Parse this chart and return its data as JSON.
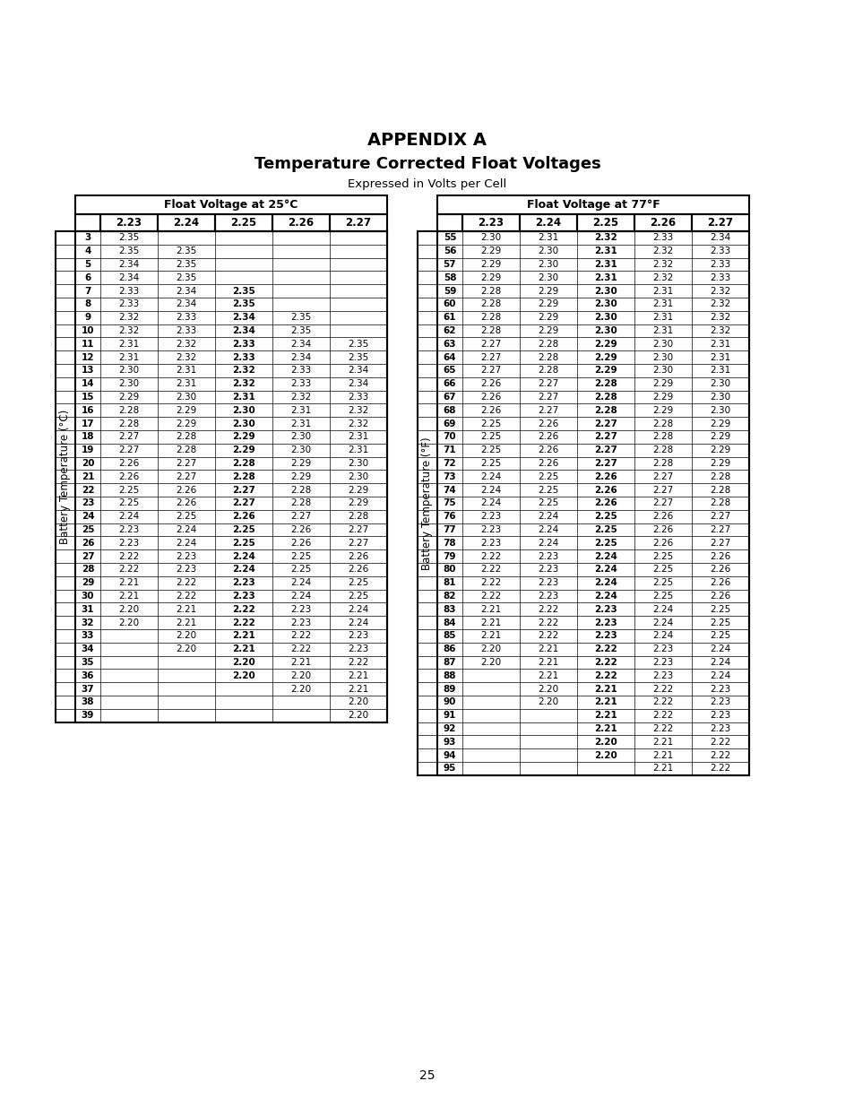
{
  "title1": "APPENDIX A",
  "title2": "Temperature Corrected Float Voltages",
  "title3": "Expressed in Volts per Cell",
  "table_left_header": "Float Voltage at 25°C",
  "table_right_header": "Float Voltage at 77°F",
  "col_headers": [
    "2.23",
    "2.24",
    "2.25",
    "2.26",
    "2.27"
  ],
  "ylabel_left": "Battery Temperature (°C)",
  "ylabel_right": "Battery Temperature (°F)",
  "page_number": "25",
  "left_table": {
    "rows": [
      [
        3,
        "2.35",
        "",
        "",
        "",
        ""
      ],
      [
        4,
        "2.35",
        "2.35",
        "",
        "",
        ""
      ],
      [
        5,
        "2.34",
        "2.35",
        "",
        "",
        ""
      ],
      [
        6,
        "2.34",
        "2.35",
        "",
        "",
        ""
      ],
      [
        7,
        "2.33",
        "2.34",
        "2.35",
        "",
        ""
      ],
      [
        8,
        "2.33",
        "2.34",
        "2.35",
        "",
        ""
      ],
      [
        9,
        "2.32",
        "2.33",
        "2.34",
        "2.35",
        ""
      ],
      [
        10,
        "2.32",
        "2.33",
        "2.34",
        "2.35",
        ""
      ],
      [
        11,
        "2.31",
        "2.32",
        "2.33",
        "2.34",
        "2.35"
      ],
      [
        12,
        "2.31",
        "2.32",
        "2.33",
        "2.34",
        "2.35"
      ],
      [
        13,
        "2.30",
        "2.31",
        "2.32",
        "2.33",
        "2.34"
      ],
      [
        14,
        "2.30",
        "2.31",
        "2.32",
        "2.33",
        "2.34"
      ],
      [
        15,
        "2.29",
        "2.30",
        "2.31",
        "2.32",
        "2.33"
      ],
      [
        16,
        "2.28",
        "2.29",
        "2.30",
        "2.31",
        "2.32"
      ],
      [
        17,
        "2.28",
        "2.29",
        "2.30",
        "2.31",
        "2.32"
      ],
      [
        18,
        "2.27",
        "2.28",
        "2.29",
        "2.30",
        "2.31"
      ],
      [
        19,
        "2.27",
        "2.28",
        "2.29",
        "2.30",
        "2.31"
      ],
      [
        20,
        "2.26",
        "2.27",
        "2.28",
        "2.29",
        "2.30"
      ],
      [
        21,
        "2.26",
        "2.27",
        "2.28",
        "2.29",
        "2.30"
      ],
      [
        22,
        "2.25",
        "2.26",
        "2.27",
        "2.28",
        "2.29"
      ],
      [
        23,
        "2.25",
        "2.26",
        "2.27",
        "2.28",
        "2.29"
      ],
      [
        24,
        "2.24",
        "2.25",
        "2.26",
        "2.27",
        "2.28"
      ],
      [
        25,
        "2.23",
        "2.24",
        "2.25",
        "2.26",
        "2.27"
      ],
      [
        26,
        "2.23",
        "2.24",
        "2.25",
        "2.26",
        "2.27"
      ],
      [
        27,
        "2.22",
        "2.23",
        "2.24",
        "2.25",
        "2.26"
      ],
      [
        28,
        "2.22",
        "2.23",
        "2.24",
        "2.25",
        "2.26"
      ],
      [
        29,
        "2.21",
        "2.22",
        "2.23",
        "2.24",
        "2.25"
      ],
      [
        30,
        "2.21",
        "2.22",
        "2.23",
        "2.24",
        "2.25"
      ],
      [
        31,
        "2.20",
        "2.21",
        "2.22",
        "2.23",
        "2.24"
      ],
      [
        32,
        "2.20",
        "2.21",
        "2.22",
        "2.23",
        "2.24"
      ],
      [
        33,
        "",
        "2.20",
        "2.21",
        "2.22",
        "2.23"
      ],
      [
        34,
        "",
        "2.20",
        "2.21",
        "2.22",
        "2.23"
      ],
      [
        35,
        "",
        "",
        "2.20",
        "2.21",
        "2.22"
      ],
      [
        36,
        "",
        "",
        "2.20",
        "2.20",
        "2.21"
      ],
      [
        37,
        "",
        "",
        "",
        "2.20",
        "2.21"
      ],
      [
        38,
        "",
        "",
        "",
        "",
        "2.20"
      ],
      [
        39,
        "",
        "",
        "",
        "",
        "2.20"
      ]
    ]
  },
  "right_table": {
    "rows": [
      [
        55,
        "2.30",
        "2.31",
        "2.32",
        "2.33",
        "2.34"
      ],
      [
        56,
        "2.29",
        "2.30",
        "2.31",
        "2.32",
        "2.33"
      ],
      [
        57,
        "2.29",
        "2.30",
        "2.31",
        "2.32",
        "2.33"
      ],
      [
        58,
        "2.29",
        "2.30",
        "2.31",
        "2.32",
        "2.33"
      ],
      [
        59,
        "2.28",
        "2.29",
        "2.30",
        "2.31",
        "2.32"
      ],
      [
        60,
        "2.28",
        "2.29",
        "2.30",
        "2.31",
        "2.32"
      ],
      [
        61,
        "2.28",
        "2.29",
        "2.30",
        "2.31",
        "2.32"
      ],
      [
        62,
        "2.28",
        "2.29",
        "2.30",
        "2.31",
        "2.32"
      ],
      [
        63,
        "2.27",
        "2.28",
        "2.29",
        "2.30",
        "2.31"
      ],
      [
        64,
        "2.27",
        "2.28",
        "2.29",
        "2.30",
        "2.31"
      ],
      [
        65,
        "2.27",
        "2.28",
        "2.29",
        "2.30",
        "2.31"
      ],
      [
        66,
        "2.26",
        "2.27",
        "2.28",
        "2.29",
        "2.30"
      ],
      [
        67,
        "2.26",
        "2.27",
        "2.28",
        "2.29",
        "2.30"
      ],
      [
        68,
        "2.26",
        "2.27",
        "2.28",
        "2.29",
        "2.30"
      ],
      [
        69,
        "2.25",
        "2.26",
        "2.27",
        "2.28",
        "2.29"
      ],
      [
        70,
        "2.25",
        "2.26",
        "2.27",
        "2.28",
        "2.29"
      ],
      [
        71,
        "2.25",
        "2.26",
        "2.27",
        "2.28",
        "2.29"
      ],
      [
        72,
        "2.25",
        "2.26",
        "2.27",
        "2.28",
        "2.29"
      ],
      [
        73,
        "2.24",
        "2.25",
        "2.26",
        "2.27",
        "2.28"
      ],
      [
        74,
        "2.24",
        "2.25",
        "2.26",
        "2.27",
        "2.28"
      ],
      [
        75,
        "2.24",
        "2.25",
        "2.26",
        "2.27",
        "2.28"
      ],
      [
        76,
        "2.23",
        "2.24",
        "2.25",
        "2.26",
        "2.27"
      ],
      [
        77,
        "2.23",
        "2.24",
        "2.25",
        "2.26",
        "2.27"
      ],
      [
        78,
        "2.23",
        "2.24",
        "2.25",
        "2.26",
        "2.27"
      ],
      [
        79,
        "2.22",
        "2.23",
        "2.24",
        "2.25",
        "2.26"
      ],
      [
        80,
        "2.22",
        "2.23",
        "2.24",
        "2.25",
        "2.26"
      ],
      [
        81,
        "2.22",
        "2.23",
        "2.24",
        "2.25",
        "2.26"
      ],
      [
        82,
        "2.22",
        "2.23",
        "2.24",
        "2.25",
        "2.26"
      ],
      [
        83,
        "2.21",
        "2.22",
        "2.23",
        "2.24",
        "2.25"
      ],
      [
        84,
        "2.21",
        "2.22",
        "2.23",
        "2.24",
        "2.25"
      ],
      [
        85,
        "2.21",
        "2.22",
        "2.23",
        "2.24",
        "2.25"
      ],
      [
        86,
        "2.20",
        "2.21",
        "2.22",
        "2.23",
        "2.24"
      ],
      [
        87,
        "2.20",
        "2.21",
        "2.22",
        "2.23",
        "2.24"
      ],
      [
        88,
        "",
        "2.21",
        "2.22",
        "2.23",
        "2.24"
      ],
      [
        89,
        "",
        "2.20",
        "2.21",
        "2.22",
        "2.23"
      ],
      [
        90,
        "",
        "2.20",
        "2.21",
        "2.22",
        "2.23"
      ],
      [
        91,
        "",
        "",
        "2.21",
        "2.22",
        "2.23"
      ],
      [
        92,
        "",
        "",
        "2.21",
        "2.22",
        "2.23"
      ],
      [
        93,
        "",
        "",
        "2.20",
        "2.21",
        "2.22"
      ],
      [
        94,
        "",
        "",
        "2.20",
        "2.21",
        "2.22"
      ],
      [
        95,
        "",
        "",
        "",
        "2.21",
        "2.22"
      ]
    ]
  }
}
